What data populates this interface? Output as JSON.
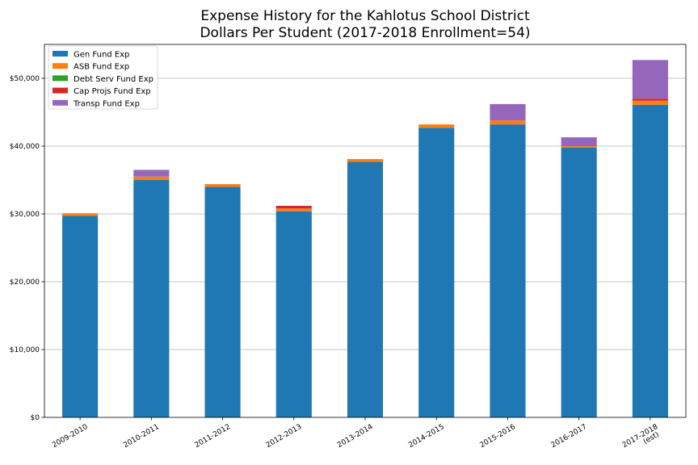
{
  "chart_data": {
    "type": "bar",
    "stacked": true,
    "title": [
      "Expense History for the Kahlotus School District",
      "Dollars Per Student (2017-2018 Enrollment=54)"
    ],
    "xlabel": "",
    "ylabel": "",
    "categories": [
      [
        "2009-2010"
      ],
      [
        "2010-2011"
      ],
      [
        "2011-2012"
      ],
      [
        "2012-2013"
      ],
      [
        "2013-2014"
      ],
      [
        "2014-2015"
      ],
      [
        "2015-2016"
      ],
      [
        "2016-2017"
      ],
      [
        "2017-2018",
        "(est)"
      ]
    ],
    "ylim": [
      0,
      55000
    ],
    "yticks": [
      0,
      10000,
      20000,
      30000,
      40000,
      50000
    ],
    "ytick_labels": [
      "$0",
      "$10,000",
      "$20,000",
      "$30,000",
      "$40,000",
      "$50,000"
    ],
    "grid": "horizontal",
    "legend_position": "top-left",
    "series": [
      {
        "name": "Gen Fund Exp",
        "color": "#1f77b4",
        "values": [
          29700,
          35000,
          34000,
          30400,
          37700,
          42700,
          43200,
          39800,
          46100
        ]
      },
      {
        "name": "ASB Fund Exp",
        "color": "#ff7f0e",
        "values": [
          400,
          500,
          400,
          400,
          400,
          500,
          600,
          200,
          600
        ]
      },
      {
        "name": "Debt Serv Fund Exp",
        "color": "#2ca02c",
        "values": [
          0,
          0,
          0,
          0,
          0,
          0,
          0,
          0,
          0
        ]
      },
      {
        "name": "Cap Projs Fund Exp",
        "color": "#d62728",
        "values": [
          0,
          0,
          0,
          400,
          0,
          0,
          0,
          0,
          300
        ]
      },
      {
        "name": "Transp Fund Exp",
        "color": "#9467bd",
        "values": [
          0,
          1000,
          0,
          0,
          0,
          0,
          2400,
          1300,
          5700
        ]
      }
    ]
  }
}
